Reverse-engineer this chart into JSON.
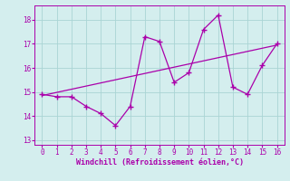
{
  "x": [
    0,
    1,
    2,
    3,
    4,
    5,
    6,
    7,
    8,
    9,
    10,
    11,
    12,
    13,
    14,
    15,
    16
  ],
  "y_data": [
    14.9,
    14.8,
    14.8,
    14.4,
    14.1,
    13.6,
    14.4,
    17.3,
    17.1,
    15.4,
    15.8,
    17.6,
    18.2,
    15.2,
    14.9,
    16.1,
    17.0
  ],
  "trend_x": [
    0,
    16
  ],
  "trend_y": [
    14.85,
    16.95
  ],
  "line_color": "#aa00aa",
  "bg_color": "#d4eeee",
  "grid_color": "#aad4d4",
  "xlabel": "Windchill (Refroidissement éolien,°C)",
  "ylim": [
    12.8,
    18.6
  ],
  "xlim": [
    -0.5,
    16.5
  ],
  "yticks": [
    13,
    14,
    15,
    16,
    17,
    18
  ],
  "xticks": [
    0,
    1,
    2,
    3,
    4,
    5,
    6,
    7,
    8,
    9,
    10,
    11,
    12,
    13,
    14,
    15,
    16
  ],
  "font_color": "#aa00aa",
  "tick_fontsize": 5.5,
  "xlabel_fontsize": 6.0
}
